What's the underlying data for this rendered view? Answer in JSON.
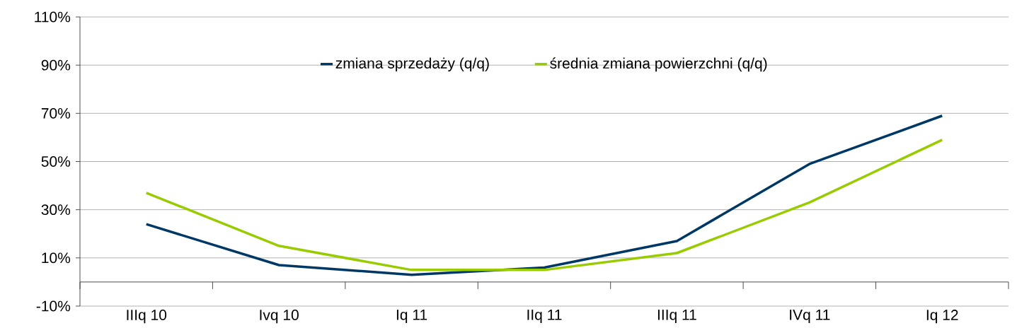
{
  "chart_data": {
    "type": "line",
    "categories": [
      "IIIq 10",
      "Ivq 10",
      "Iq 11",
      "IIq 11",
      "IIIq 11",
      "IVq 11",
      "Iq 12"
    ],
    "series": [
      {
        "name": "zmiana sprzedaży (q/q)",
        "color": "#003865",
        "values": [
          24,
          7,
          3,
          6,
          17,
          49,
          69
        ]
      },
      {
        "name": "średnia zmiana powierzchni (q/q)",
        "color": "#99cc00",
        "values": [
          37,
          15,
          5,
          5,
          12,
          33,
          59
        ]
      }
    ],
    "ylim": [
      -10,
      110
    ],
    "yticks": [
      {
        "value": -10,
        "label": "-10%"
      },
      {
        "value": 10,
        "label": "10%"
      },
      {
        "value": 30,
        "label": "30%"
      },
      {
        "value": 50,
        "label": "50%"
      },
      {
        "value": 70,
        "label": "70%"
      },
      {
        "value": 90,
        "label": "90%"
      },
      {
        "value": 110,
        "label": "110%"
      }
    ],
    "grid": "y",
    "legend": "top",
    "marker": "none",
    "line_style": "solid"
  }
}
